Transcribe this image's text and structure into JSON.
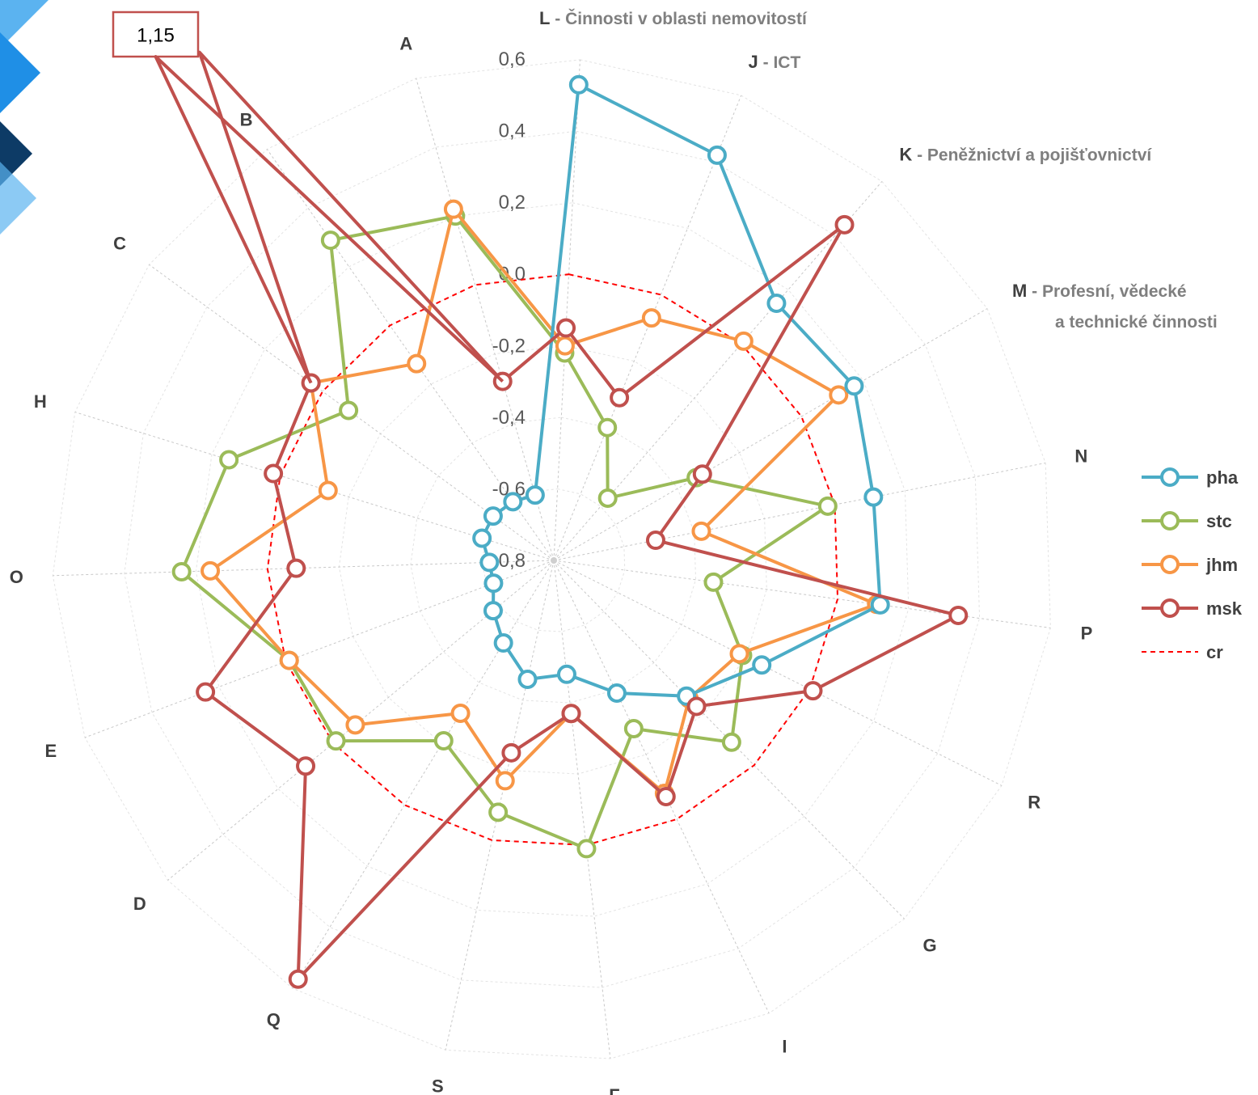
{
  "chart_data": {
    "type": "radar",
    "title": "",
    "r_range": [
      -0.8,
      0.6
    ],
    "r_ticks": [
      "0,6",
      "0,4",
      "0,2",
      "0,0",
      "-0,2",
      "-0,4",
      "-0,6",
      "-0,8"
    ],
    "grid": true,
    "legend_position": "right",
    "categories": [
      {
        "code": "L",
        "desc": "Činnosti v oblasti nemovitostí"
      },
      {
        "code": "J",
        "desc": "ICT"
      },
      {
        "code": "K",
        "desc": "Peněžnictví a pojišťovnictví"
      },
      {
        "code": "M",
        "desc": "Profesní, vědecké",
        "desc2": "a technické činnosti"
      },
      {
        "code": "N",
        "desc": ""
      },
      {
        "code": "P",
        "desc": ""
      },
      {
        "code": "R",
        "desc": ""
      },
      {
        "code": "G",
        "desc": ""
      },
      {
        "code": "I",
        "desc": ""
      },
      {
        "code": "F",
        "desc": ""
      },
      {
        "code": "S",
        "desc": ""
      },
      {
        "code": "Q",
        "desc": ""
      },
      {
        "code": "D",
        "desc": ""
      },
      {
        "code": "E",
        "desc": ""
      },
      {
        "code": "O",
        "desc": ""
      },
      {
        "code": "H",
        "desc": ""
      },
      {
        "code": "C",
        "desc": ""
      },
      {
        "code": "B",
        "desc": ""
      },
      {
        "code": "A",
        "desc": ""
      }
    ],
    "series": [
      {
        "name": "pha",
        "color": "#4bacc6",
        "style": "solid",
        "values": [
          0.53,
          0.42,
          0.15,
          0.17,
          0.11,
          0.12,
          -0.15,
          -0.27,
          -0.39,
          -0.48,
          -0.46,
          -0.53,
          -0.58,
          -0.62,
          -0.62,
          -0.59,
          -0.59,
          -0.6,
          -0.61
        ]
      },
      {
        "name": "stc",
        "color": "#9bbb59",
        "style": "solid",
        "values": [
          -0.22,
          -0.4,
          -0.57,
          -0.34,
          -0.02,
          -0.35,
          -0.21,
          -0.09,
          -0.28,
          0.01,
          -0.08,
          -0.21,
          -0.01,
          -0.01,
          0.24,
          0.15,
          -0.09,
          0.29,
          0.2
        ]
      },
      {
        "name": "jhm",
        "color": "#f79646",
        "style": "solid",
        "values": [
          -0.2,
          -0.07,
          0.01,
          0.12,
          -0.38,
          0.11,
          -0.22,
          -0.26,
          -0.08,
          -0.37,
          -0.17,
          -0.3,
          -0.08,
          -0.01,
          0.16,
          -0.14,
          0.04,
          -0.13,
          0.22
        ]
      },
      {
        "name": "msk",
        "color": "#c0504d",
        "style": "solid",
        "values": [
          -0.15,
          -0.31,
          0.44,
          -0.32,
          -0.51,
          0.34,
          0.01,
          -0.23,
          -0.07,
          -0.37,
          -0.25,
          0.57,
          0.1,
          0.24,
          -0.08,
          0.02,
          0.04,
          1.15,
          -0.28
        ]
      },
      {
        "name": "cr",
        "color": "#ff0000",
        "style": "dashed",
        "values": [
          0.0,
          0.0,
          0.0,
          0.0,
          0.0,
          0.0,
          0.0,
          0.0,
          0.0,
          0.0,
          0.0,
          0.0,
          0.0,
          0.0,
          0.0,
          0.0,
          0.0,
          0.0,
          0.0
        ]
      }
    ],
    "annotations": [
      {
        "text": "1,15",
        "series": "msk",
        "category": "B",
        "note_kind": "clipped-value-callout"
      }
    ]
  },
  "logo": {
    "name": "corner-logo",
    "colors": [
      "#1f8fe6",
      "#5bb3f0",
      "#0d3b66"
    ]
  }
}
